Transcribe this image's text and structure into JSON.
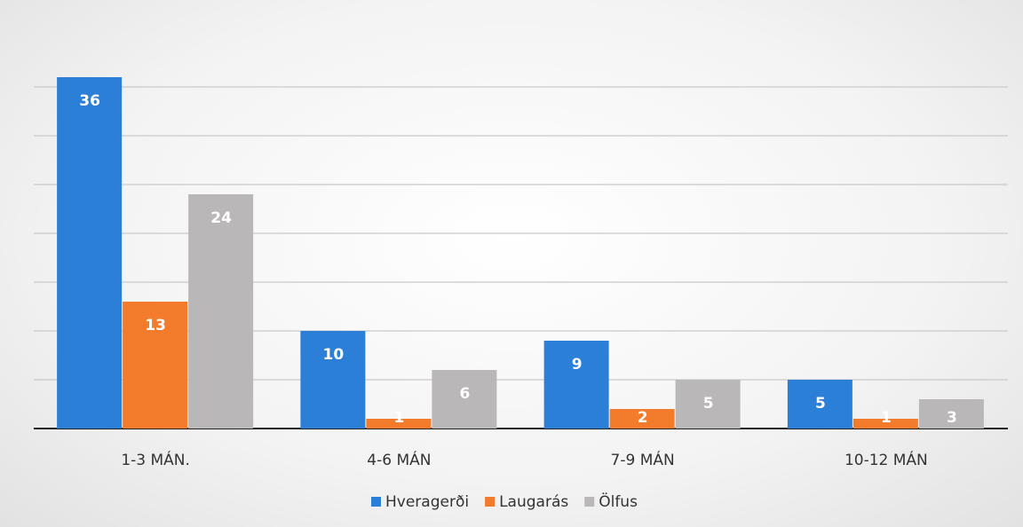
{
  "chart_data": {
    "type": "bar",
    "categories": [
      "1-3 MÁN.",
      "4-6 MÁN",
      "7-9 MÁN",
      "10-12 MÁN"
    ],
    "series": [
      {
        "name": "Hveragerði",
        "color": "#2b7fd6",
        "values": [
          36,
          10,
          9,
          5
        ]
      },
      {
        "name": "Laugarás",
        "color": "#f27b2c",
        "values": [
          13,
          1,
          2,
          1
        ]
      },
      {
        "name": "Ölfus",
        "color": "#bab7b9",
        "values": [
          24,
          6,
          5,
          3
        ]
      }
    ],
    "ylim": [
      0,
      40
    ],
    "yticks": [
      0,
      5,
      10,
      15,
      20,
      25,
      30,
      35
    ],
    "grid": true,
    "legend": "bottom"
  }
}
